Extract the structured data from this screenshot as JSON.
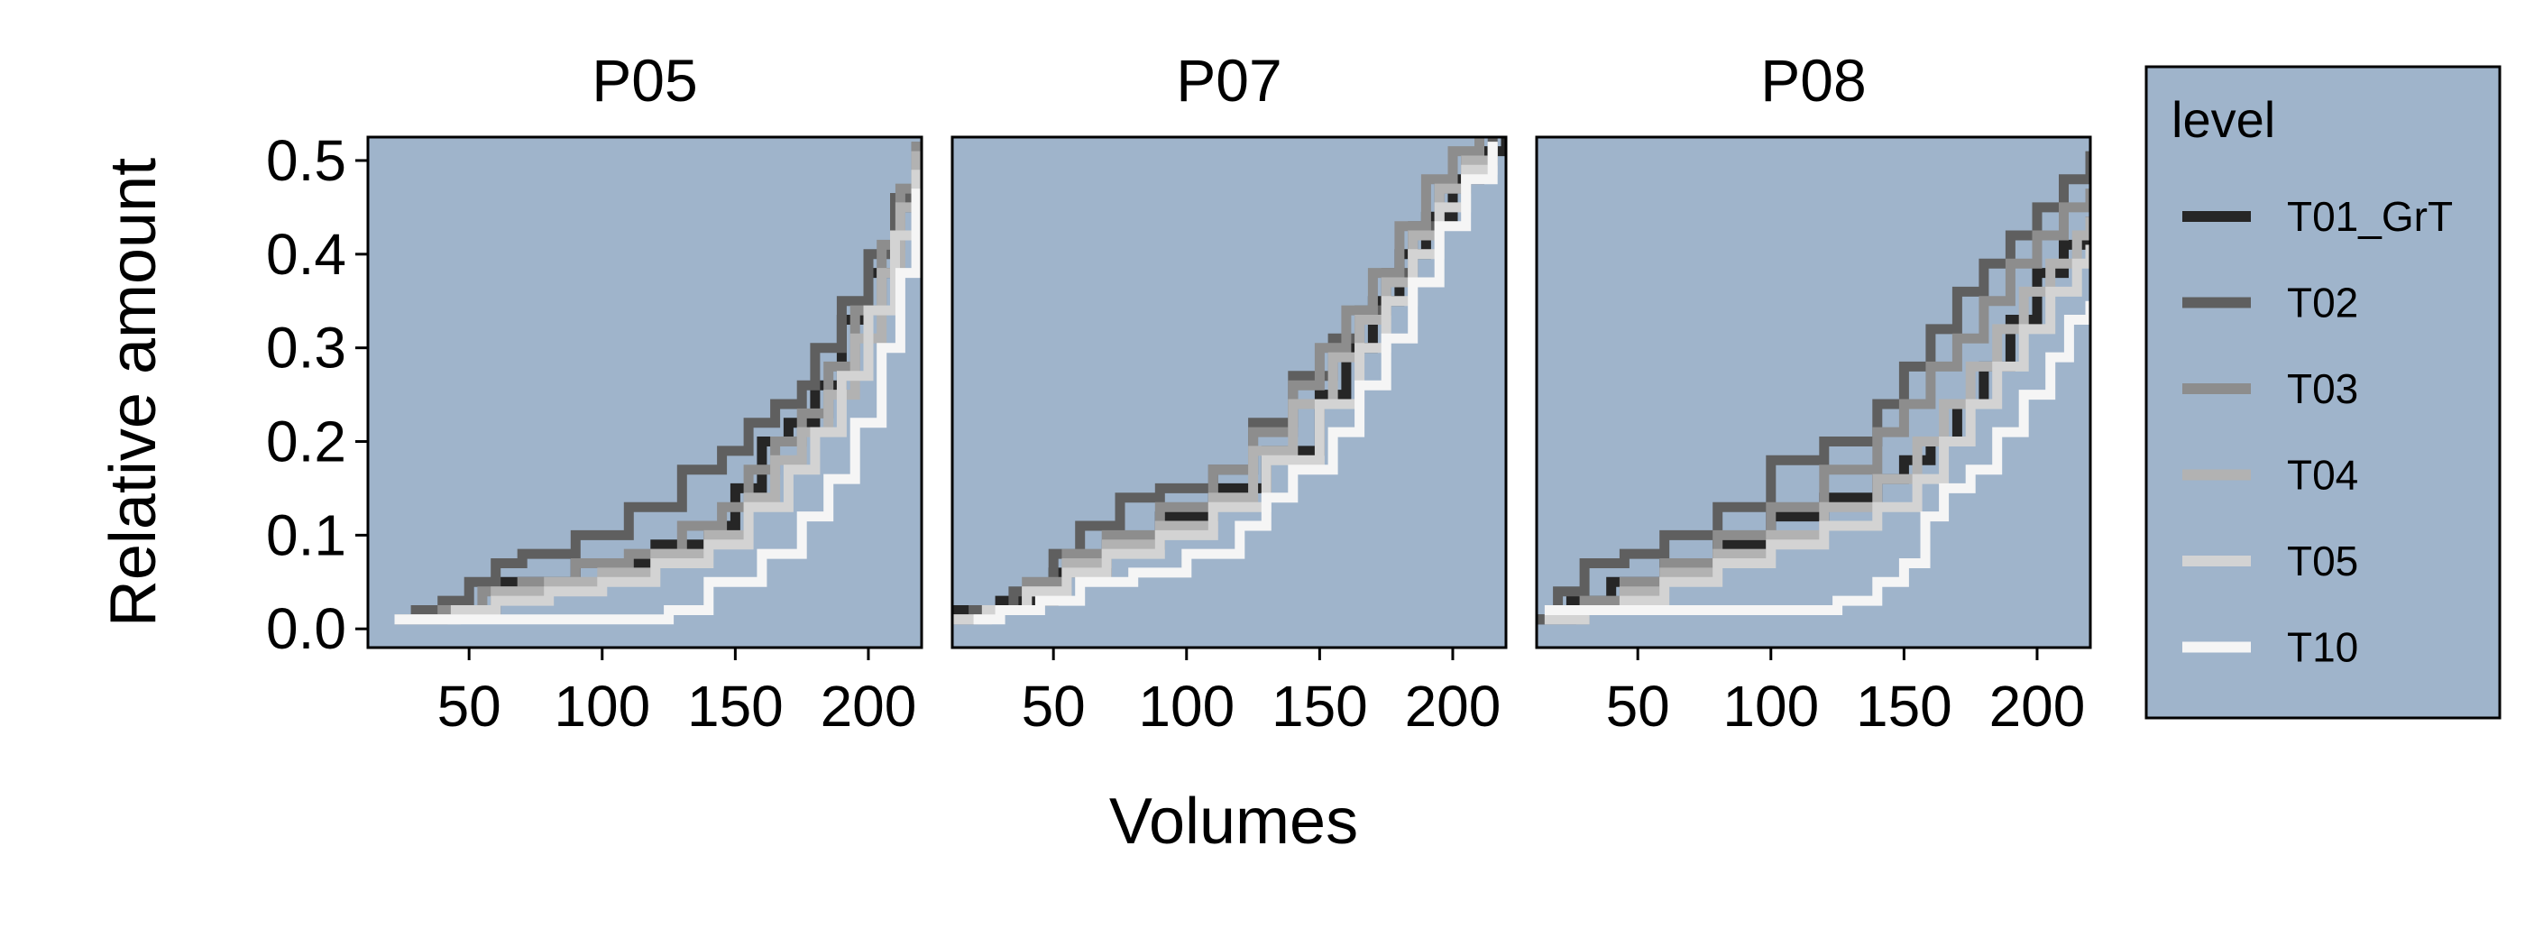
{
  "colors": {
    "panel_bg": "#9fb4cb",
    "legend_bg": "#9fb4cb",
    "border": "#000000",
    "page_bg": "#ffffff"
  },
  "legend": {
    "title": "level",
    "placement": "right",
    "items": [
      {
        "label": "T01_GrT",
        "color": "#262626"
      },
      {
        "label": "T02",
        "color": "#5f5f5f"
      },
      {
        "label": "T03",
        "color": "#8d8d8d"
      },
      {
        "label": "T04",
        "color": "#b2b2b2"
      },
      {
        "label": "T05",
        "color": "#d3d3d3"
      },
      {
        "label": "T10",
        "color": "#f5f5f5"
      }
    ]
  },
  "chart_data": {
    "type": "line",
    "step": true,
    "xlabel": "Volumes",
    "ylabel": "Relative amount",
    "xlim": [
      12,
      220
    ],
    "ylim": [
      -0.02,
      0.525
    ],
    "xticks": [
      50,
      100,
      150,
      200
    ],
    "xtick_labels": [
      "50",
      "100",
      "150",
      "200"
    ],
    "yticks": [
      0.0,
      0.1,
      0.2,
      0.3,
      0.4,
      0.5
    ],
    "ytick_labels": [
      "0.0",
      "0.1",
      "0.2",
      "0.3",
      "0.4",
      "0.5"
    ],
    "grid": false,
    "legend_position": "right",
    "facets": [
      {
        "title": "P05",
        "series": [
          {
            "level": "T01_GrT",
            "x": [
              22,
              40,
              60,
              90,
              120,
              140,
              150,
              160,
              170,
              180,
              190,
              200,
              210,
              218
            ],
            "y": [
              0.01,
              0.02,
              0.05,
              0.07,
              0.09,
              0.11,
              0.15,
              0.2,
              0.22,
              0.26,
              0.33,
              0.38,
              0.45,
              0.51
            ]
          },
          {
            "level": "T02",
            "x": [
              22,
              30,
              40,
              50,
              60,
              70,
              90,
              110,
              130,
              145,
              155,
              165,
              175,
              180,
              190,
              200,
              210,
              218
            ],
            "y": [
              0.01,
              0.02,
              0.03,
              0.05,
              0.07,
              0.08,
              0.1,
              0.13,
              0.17,
              0.19,
              0.22,
              0.24,
              0.26,
              0.3,
              0.35,
              0.4,
              0.46,
              0.52
            ]
          },
          {
            "level": "T03",
            "x": [
              22,
              40,
              55,
              70,
              90,
              110,
              130,
              145,
              155,
              165,
              175,
              185,
              195,
              205,
              212,
              218
            ],
            "y": [
              0.01,
              0.02,
              0.04,
              0.05,
              0.07,
              0.08,
              0.11,
              0.13,
              0.17,
              0.2,
              0.23,
              0.28,
              0.34,
              0.41,
              0.47,
              0.52
            ]
          },
          {
            "level": "T04",
            "x": [
              22,
              45,
              60,
              80,
              100,
              120,
              140,
              155,
              165,
              175,
              185,
              195,
              205,
              212,
              218
            ],
            "y": [
              0.01,
              0.02,
              0.04,
              0.05,
              0.06,
              0.08,
              0.1,
              0.14,
              0.18,
              0.21,
              0.25,
              0.31,
              0.38,
              0.45,
              0.51
            ]
          },
          {
            "level": "T05",
            "x": [
              22,
              45,
              60,
              80,
              100,
              120,
              140,
              155,
              170,
              180,
              190,
              200,
              210,
              218
            ],
            "y": [
              0.01,
              0.02,
              0.03,
              0.04,
              0.05,
              0.07,
              0.09,
              0.13,
              0.17,
              0.21,
              0.27,
              0.34,
              0.42,
              0.49
            ]
          },
          {
            "level": "T10",
            "x": [
              22,
              50,
              75,
              100,
              125,
              140,
              160,
              175,
              185,
              195,
              205,
              212,
              218
            ],
            "y": [
              0.01,
              0.01,
              0.01,
              0.01,
              0.02,
              0.05,
              0.08,
              0.12,
              0.16,
              0.22,
              0.3,
              0.38,
              0.47
            ]
          }
        ]
      },
      {
        "title": "P07",
        "series": [
          {
            "level": "T01_GrT",
            "x": [
              12,
              30,
              50,
              70,
              90,
              110,
              130,
              150,
              160,
              170,
              180,
              190,
              200,
              210,
              220
            ],
            "y": [
              0.02,
              0.03,
              0.06,
              0.09,
              0.12,
              0.15,
              0.19,
              0.25,
              0.3,
              0.35,
              0.4,
              0.44,
              0.48,
              0.51,
              0.53
            ]
          },
          {
            "level": "T02",
            "x": [
              12,
              20,
              35,
              50,
              60,
              75,
              90,
              110,
              125,
              140,
              155,
              165,
              175,
              185,
              195,
              205,
              215
            ],
            "y": [
              0.01,
              0.02,
              0.04,
              0.08,
              0.11,
              0.14,
              0.15,
              0.17,
              0.22,
              0.27,
              0.31,
              0.34,
              0.38,
              0.43,
              0.47,
              0.5,
              0.53
            ]
          },
          {
            "level": "T03",
            "x": [
              12,
              25,
              40,
              55,
              70,
              90,
              110,
              125,
              140,
              150,
              160,
              170,
              180,
              190,
              200,
              210
            ],
            "y": [
              0.01,
              0.02,
              0.05,
              0.08,
              0.1,
              0.13,
              0.17,
              0.21,
              0.26,
              0.3,
              0.34,
              0.38,
              0.43,
              0.48,
              0.51,
              0.53
            ]
          },
          {
            "level": "T04",
            "x": [
              12,
              25,
              40,
              55,
              70,
              90,
              110,
              125,
              140,
              155,
              165,
              175,
              185,
              195,
              205,
              215
            ],
            "y": [
              0.01,
              0.02,
              0.04,
              0.07,
              0.09,
              0.11,
              0.14,
              0.19,
              0.24,
              0.29,
              0.33,
              0.37,
              0.42,
              0.47,
              0.5,
              0.52
            ]
          },
          {
            "level": "T05",
            "x": [
              12,
              25,
              40,
              55,
              70,
              90,
              110,
              130,
              150,
              165,
              175,
              185,
              195,
              205,
              215
            ],
            "y": [
              0.01,
              0.02,
              0.04,
              0.06,
              0.08,
              0.1,
              0.13,
              0.18,
              0.24,
              0.3,
              0.35,
              0.4,
              0.45,
              0.49,
              0.52
            ]
          },
          {
            "level": "T10",
            "x": [
              20,
              30,
              45,
              60,
              80,
              100,
              120,
              130,
              140,
              155,
              165,
              175,
              185,
              195,
              205,
              215
            ],
            "y": [
              0.01,
              0.02,
              0.03,
              0.05,
              0.06,
              0.08,
              0.11,
              0.14,
              0.17,
              0.21,
              0.26,
              0.31,
              0.37,
              0.43,
              0.48,
              0.52
            ]
          }
        ]
      },
      {
        "title": "P08",
        "series": [
          {
            "level": "T01_GrT",
            "x": [
              12,
              25,
              40,
              60,
              80,
              100,
              120,
              140,
              150,
              160,
              170,
              180,
              190,
              200,
              210,
              220
            ],
            "y": [
              0.01,
              0.03,
              0.05,
              0.07,
              0.09,
              0.12,
              0.14,
              0.16,
              0.18,
              0.2,
              0.24,
              0.28,
              0.33,
              0.38,
              0.41,
              0.44
            ]
          },
          {
            "level": "T02",
            "x": [
              12,
              20,
              30,
              45,
              60,
              80,
              100,
              120,
              140,
              150,
              160,
              170,
              180,
              190,
              200,
              210,
              220
            ],
            "y": [
              0.01,
              0.04,
              0.07,
              0.08,
              0.1,
              0.13,
              0.18,
              0.2,
              0.24,
              0.28,
              0.32,
              0.36,
              0.39,
              0.42,
              0.45,
              0.48,
              0.51
            ]
          },
          {
            "level": "T03",
            "x": [
              15,
              30,
              45,
              60,
              80,
              100,
              120,
              140,
              150,
              160,
              170,
              180,
              190,
              200,
              210,
              220
            ],
            "y": [
              0.01,
              0.03,
              0.05,
              0.07,
              0.1,
              0.13,
              0.17,
              0.21,
              0.24,
              0.28,
              0.31,
              0.35,
              0.39,
              0.42,
              0.45,
              0.47
            ]
          },
          {
            "level": "T04",
            "x": [
              15,
              30,
              45,
              60,
              80,
              100,
              120,
              140,
              155,
              165,
              175,
              185,
              195,
              205,
              215,
              220
            ],
            "y": [
              0.01,
              0.02,
              0.04,
              0.06,
              0.08,
              0.1,
              0.13,
              0.16,
              0.2,
              0.24,
              0.28,
              0.32,
              0.36,
              0.39,
              0.42,
              0.44
            ]
          },
          {
            "level": "T05",
            "x": [
              15,
              30,
              45,
              60,
              80,
              100,
              120,
              140,
              155,
              165,
              175,
              185,
              195,
              205,
              215,
              220
            ],
            "y": [
              0.01,
              0.02,
              0.03,
              0.05,
              0.07,
              0.09,
              0.11,
              0.13,
              0.16,
              0.2,
              0.24,
              0.28,
              0.32,
              0.36,
              0.39,
              0.41
            ]
          },
          {
            "level": "T10",
            "x": [
              15,
              60,
              100,
              125,
              140,
              150,
              158,
              165,
              175,
              185,
              195,
              205,
              212,
              220
            ],
            "y": [
              0.02,
              0.02,
              0.02,
              0.03,
              0.05,
              0.07,
              0.12,
              0.15,
              0.17,
              0.21,
              0.25,
              0.29,
              0.33,
              0.35
            ]
          }
        ]
      }
    ]
  }
}
